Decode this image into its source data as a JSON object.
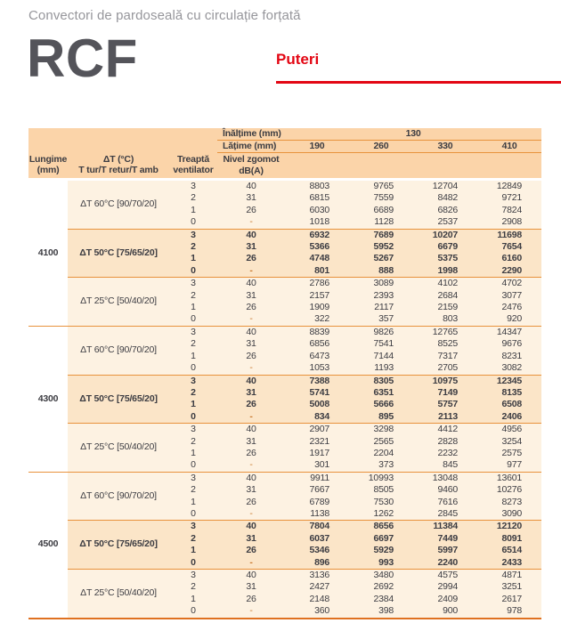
{
  "colors": {
    "accent_red": "#e30613",
    "header_bg": "#fbd4a9",
    "row_bg": "#fdf2e2",
    "highlight_bg": "#fbe5c8",
    "line_orange": "#e8923c",
    "strong_line": "#df7120",
    "text_dark": "#3c3c42",
    "title_gray": "#96969b",
    "model_gray": "#54545a"
  },
  "header": {
    "subtitle": "Convectori de pardoseală cu circulație forțată",
    "model": "RCF",
    "section": "Puteri"
  },
  "table": {
    "height_label": "Înălțime (mm)",
    "height_value": "130",
    "width_label": "Lățime (mm)",
    "width_values": [
      "190",
      "260",
      "330",
      "410"
    ],
    "columns": {
      "lungime": [
        "Lungime",
        "(mm)"
      ],
      "dt": [
        "ΔT (°C)",
        "T tur/T retur/T amb"
      ],
      "treapta": [
        "Treaptă",
        "ventilator"
      ],
      "nivel": [
        "Nivel zgomot",
        "dB(A)"
      ]
    },
    "groups": [
      {
        "lungime": "4100",
        "subgroups": [
          {
            "dt_label": "ΔT 60°C [90/70/20]",
            "highlight": false,
            "rows": [
              {
                "treapta": "3",
                "nivel": "40",
                "values": [
                  "8803",
                  "9765",
                  "12704",
                  "12849"
                ]
              },
              {
                "treapta": "2",
                "nivel": "31",
                "values": [
                  "6815",
                  "7559",
                  "8482",
                  "9721"
                ]
              },
              {
                "treapta": "1",
                "nivel": "26",
                "values": [
                  "6030",
                  "6689",
                  "6826",
                  "7824"
                ]
              },
              {
                "treapta": "0",
                "nivel": "-",
                "values": [
                  "1018",
                  "1128",
                  "2537",
                  "2908"
                ]
              }
            ]
          },
          {
            "dt_label": "ΔT 50°C [75/65/20]",
            "highlight": true,
            "rows": [
              {
                "treapta": "3",
                "nivel": "40",
                "values": [
                  "6932",
                  "7689",
                  "10207",
                  "11698"
                ]
              },
              {
                "treapta": "2",
                "nivel": "31",
                "values": [
                  "5366",
                  "5952",
                  "6679",
                  "7654"
                ]
              },
              {
                "treapta": "1",
                "nivel": "26",
                "values": [
                  "4748",
                  "5267",
                  "5375",
                  "6160"
                ]
              },
              {
                "treapta": "0",
                "nivel": "-",
                "values": [
                  "801",
                  "888",
                  "1998",
                  "2290"
                ]
              }
            ]
          },
          {
            "dt_label": "ΔT 25°C [50/40/20]",
            "highlight": false,
            "rows": [
              {
                "treapta": "3",
                "nivel": "40",
                "values": [
                  "2786",
                  "3089",
                  "4102",
                  "4702"
                ]
              },
              {
                "treapta": "2",
                "nivel": "31",
                "values": [
                  "2157",
                  "2393",
                  "2684",
                  "3077"
                ]
              },
              {
                "treapta": "1",
                "nivel": "26",
                "values": [
                  "1909",
                  "2117",
                  "2159",
                  "2476"
                ]
              },
              {
                "treapta": "0",
                "nivel": "-",
                "values": [
                  "322",
                  "357",
                  "803",
                  "920"
                ]
              }
            ]
          }
        ]
      },
      {
        "lungime": "4300",
        "subgroups": [
          {
            "dt_label": "ΔT 60°C [90/70/20]",
            "highlight": false,
            "rows": [
              {
                "treapta": "3",
                "nivel": "40",
                "values": [
                  "8839",
                  "9826",
                  "12765",
                  "14347"
                ]
              },
              {
                "treapta": "2",
                "nivel": "31",
                "values": [
                  "6856",
                  "7541",
                  "8525",
                  "9676"
                ]
              },
              {
                "treapta": "1",
                "nivel": "26",
                "values": [
                  "6473",
                  "7144",
                  "7317",
                  "8231"
                ]
              },
              {
                "treapta": "0",
                "nivel": "-",
                "values": [
                  "1053",
                  "1193",
                  "2705",
                  "3082"
                ]
              }
            ]
          },
          {
            "dt_label": "ΔT 50°C [75/65/20]",
            "highlight": true,
            "rows": [
              {
                "treapta": "3",
                "nivel": "40",
                "values": [
                  "7388",
                  "8305",
                  "10975",
                  "12345"
                ]
              },
              {
                "treapta": "2",
                "nivel": "31",
                "values": [
                  "5741",
                  "6351",
                  "7149",
                  "8135"
                ]
              },
              {
                "treapta": "1",
                "nivel": "26",
                "values": [
                  "5008",
                  "5666",
                  "5757",
                  "6508"
                ]
              },
              {
                "treapta": "0",
                "nivel": "-",
                "values": [
                  "834",
                  "895",
                  "2113",
                  "2406"
                ]
              }
            ]
          },
          {
            "dt_label": "ΔT 25°C [50/40/20]",
            "highlight": false,
            "rows": [
              {
                "treapta": "3",
                "nivel": "40",
                "values": [
                  "2907",
                  "3298",
                  "4412",
                  "4956"
                ]
              },
              {
                "treapta": "2",
                "nivel": "31",
                "values": [
                  "2321",
                  "2565",
                  "2828",
                  "3254"
                ]
              },
              {
                "treapta": "1",
                "nivel": "26",
                "values": [
                  "1917",
                  "2204",
                  "2232",
                  "2575"
                ]
              },
              {
                "treapta": "0",
                "nivel": "-",
                "values": [
                  "301",
                  "373",
                  "845",
                  "977"
                ]
              }
            ]
          }
        ]
      },
      {
        "lungime": "4500",
        "subgroups": [
          {
            "dt_label": "ΔT 60°C [90/70/20]",
            "highlight": false,
            "rows": [
              {
                "treapta": "3",
                "nivel": "40",
                "values": [
                  "9911",
                  "10993",
                  "13048",
                  "13601"
                ]
              },
              {
                "treapta": "2",
                "nivel": "31",
                "values": [
                  "7667",
                  "8505",
                  "9460",
                  "10276"
                ]
              },
              {
                "treapta": "1",
                "nivel": "26",
                "values": [
                  "6789",
                  "7530",
                  "7616",
                  "8273"
                ]
              },
              {
                "treapta": "0",
                "nivel": "-",
                "values": [
                  "1138",
                  "1262",
                  "2845",
                  "3090"
                ]
              }
            ]
          },
          {
            "dt_label": "ΔT 50°C [75/65/20]",
            "highlight": true,
            "rows": [
              {
                "treapta": "3",
                "nivel": "40",
                "values": [
                  "7804",
                  "8656",
                  "11384",
                  "12120"
                ]
              },
              {
                "treapta": "2",
                "nivel": "31",
                "values": [
                  "6037",
                  "6697",
                  "7449",
                  "8091"
                ]
              },
              {
                "treapta": "1",
                "nivel": "26",
                "values": [
                  "5346",
                  "5929",
                  "5997",
                  "6514"
                ]
              },
              {
                "treapta": "0",
                "nivel": "-",
                "values": [
                  "896",
                  "993",
                  "2240",
                  "2433"
                ]
              }
            ]
          },
          {
            "dt_label": "ΔT 25°C [50/40/20]",
            "highlight": false,
            "rows": [
              {
                "treapta": "3",
                "nivel": "40",
                "values": [
                  "3136",
                  "3480",
                  "4575",
                  "4871"
                ]
              },
              {
                "treapta": "2",
                "nivel": "31",
                "values": [
                  "2427",
                  "2692",
                  "2994",
                  "3251"
                ]
              },
              {
                "treapta": "1",
                "nivel": "26",
                "values": [
                  "2148",
                  "2384",
                  "2409",
                  "2617"
                ]
              },
              {
                "treapta": "0",
                "nivel": "-",
                "values": [
                  "360",
                  "398",
                  "900",
                  "978"
                ]
              }
            ]
          }
        ]
      }
    ]
  }
}
